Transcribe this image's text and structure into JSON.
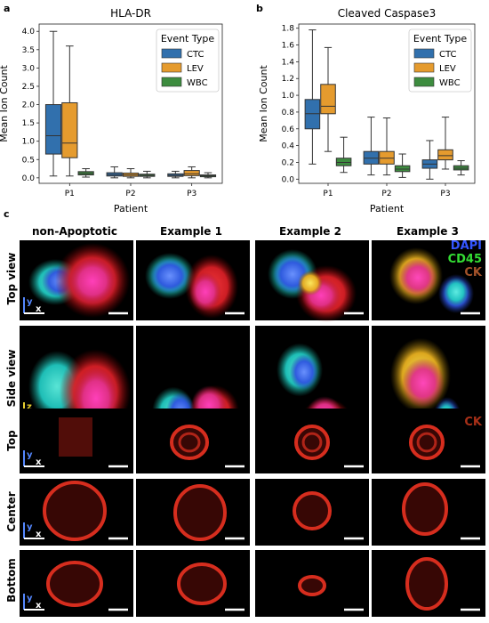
{
  "panel_letters": {
    "a": "a",
    "b": "b",
    "c": "c"
  },
  "chart_data": [
    {
      "type": "box",
      "title": "HLA-DR",
      "xlabel": "Patient",
      "ylabel": "Mean Ion Count",
      "ylim": [
        -0.15,
        4.2
      ],
      "yticks": [
        "0.0",
        "0.5",
        "1.0",
        "1.5",
        "2.0",
        "2.5",
        "3.0",
        "3.5",
        "4.0"
      ],
      "categories": [
        "P1",
        "P2",
        "P3"
      ],
      "legend": {
        "title": "Event Type",
        "placement": "top-right"
      },
      "series": [
        {
          "name": "CTC",
          "color": "#3170ad",
          "boxes": [
            {
              "min": 0.05,
              "q1": 0.65,
              "median": 1.15,
              "q3": 2.0,
              "max": 4.0
            },
            {
              "min": 0.0,
              "q1": 0.05,
              "median": 0.09,
              "q3": 0.14,
              "max": 0.3
            },
            {
              "min": 0.0,
              "q1": 0.04,
              "median": 0.07,
              "q3": 0.11,
              "max": 0.18
            }
          ]
        },
        {
          "name": "LEV",
          "color": "#e59b2e",
          "boxes": [
            {
              "min": 0.05,
              "q1": 0.55,
              "median": 0.95,
              "q3": 2.05,
              "max": 3.6
            },
            {
              "min": 0.0,
              "q1": 0.04,
              "median": 0.08,
              "q3": 0.13,
              "max": 0.25
            },
            {
              "min": 0.0,
              "q1": 0.06,
              "median": 0.11,
              "q3": 0.2,
              "max": 0.3
            }
          ]
        },
        {
          "name": "WBC",
          "color": "#3d8c3f",
          "boxes": [
            {
              "min": 0.02,
              "q1": 0.08,
              "median": 0.12,
              "q3": 0.17,
              "max": 0.25
            },
            {
              "min": 0.0,
              "q1": 0.04,
              "median": 0.07,
              "q3": 0.1,
              "max": 0.18
            },
            {
              "min": 0.0,
              "q1": 0.03,
              "median": 0.06,
              "q3": 0.08,
              "max": 0.14
            }
          ]
        }
      ]
    },
    {
      "type": "box",
      "title": "Cleaved Caspase3",
      "xlabel": "Patient",
      "ylabel": "Mean Ion Count",
      "ylim": [
        -0.05,
        1.85
      ],
      "yticks": [
        "0.0",
        "0.2",
        "0.4",
        "0.6",
        "0.8",
        "1.0",
        "1.2",
        "1.4",
        "1.6",
        "1.8"
      ],
      "categories": [
        "P1",
        "P2",
        "P3"
      ],
      "legend": {
        "title": "Event Type",
        "placement": "top-right"
      },
      "series": [
        {
          "name": "CTC",
          "color": "#3170ad",
          "boxes": [
            {
              "min": 0.18,
              "q1": 0.6,
              "median": 0.78,
              "q3": 0.95,
              "max": 1.78
            },
            {
              "min": 0.05,
              "q1": 0.18,
              "median": 0.25,
              "q3": 0.33,
              "max": 0.74
            },
            {
              "min": 0.0,
              "q1": 0.13,
              "median": 0.18,
              "q3": 0.23,
              "max": 0.46
            }
          ]
        },
        {
          "name": "LEV",
          "color": "#e59b2e",
          "boxes": [
            {
              "min": 0.33,
              "q1": 0.78,
              "median": 0.87,
              "q3": 1.13,
              "max": 1.57
            },
            {
              "min": 0.05,
              "q1": 0.18,
              "median": 0.25,
              "q3": 0.33,
              "max": 0.73
            },
            {
              "min": 0.12,
              "q1": 0.23,
              "median": 0.28,
              "q3": 0.35,
              "max": 0.74
            }
          ]
        },
        {
          "name": "WBC",
          "color": "#3d8c3f",
          "boxes": [
            {
              "min": 0.08,
              "q1": 0.16,
              "median": 0.2,
              "q3": 0.25,
              "max": 0.5
            },
            {
              "min": 0.02,
              "q1": 0.09,
              "median": 0.12,
              "q3": 0.16,
              "max": 0.3
            },
            {
              "min": 0.05,
              "q1": 0.11,
              "median": 0.13,
              "q3": 0.16,
              "max": 0.22
            }
          ]
        }
      ]
    }
  ],
  "panel_c": {
    "column_headers": [
      "non-Apoptotic",
      "Example 1",
      "Example 2",
      "Example 3"
    ],
    "row_labels": [
      "Top view",
      "Side view",
      "Top",
      "Center",
      "Bottom"
    ],
    "channel_legend": [
      {
        "label": "DAPI",
        "color": "#3355ff"
      },
      {
        "label": "CD45",
        "color": "#33dd33"
      },
      {
        "label": "CK",
        "color": "#a4532a"
      }
    ],
    "ck_label": "CK",
    "ck_color": "#a83018",
    "axis_labels": {
      "x": "x",
      "y": "y",
      "z": "z"
    },
    "axis_color_y": "#5588ff",
    "axis_color_z": "#e8d030"
  }
}
